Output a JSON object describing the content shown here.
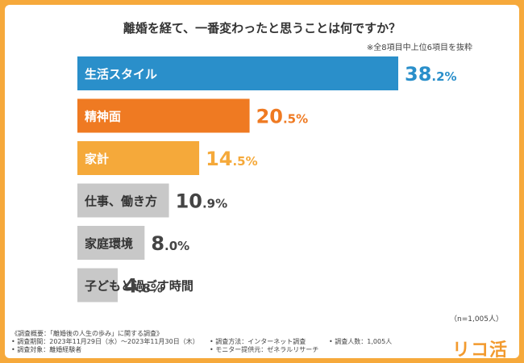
{
  "title": "離婚を経て、一番変わったと思うことは何ですか？",
  "note": "※全8項目中上位6項目を抜粋",
  "chart_data": {
    "type": "bar",
    "orientation": "horizontal",
    "categories": [
      "生活スタイル",
      "精神面",
      "家計",
      "仕事、働き方",
      "家庭環境",
      "子どもと過ごす時間"
    ],
    "values": [
      38.2,
      20.5,
      14.5,
      10.9,
      8.0,
      4.8
    ],
    "unit": "%",
    "colors": [
      "#2a8fca",
      "#ef7a22",
      "#f5a93a",
      "#c8c8c8",
      "#c8c8c8",
      "#c8c8c8"
    ],
    "label_colors": [
      "#2a8fca",
      "#ef7a22",
      "#f5a93a",
      "#444444",
      "#444444",
      "#444444"
    ],
    "category_text_colors": [
      "#ffffff",
      "#ffffff",
      "#ffffff",
      "#333333",
      "#333333",
      "#333333"
    ],
    "xlim": [
      0,
      38.2
    ],
    "grid": false
  },
  "sample_size": "（n=1,005人）",
  "survey": {
    "heading": "《調査概要：「離婚後の人生の歩み」に関する調査》",
    "period": "• 調査期間：2023年11月29日（水）～2023年11月30日（木）",
    "method": "• 調査方法：インターネット調査",
    "count": "• 調査人数：1,005人",
    "target": "• 調査対象：離婚経験者",
    "provider": "• モニター提供元：ゼネラルリサーチ"
  },
  "logo": "リコ活"
}
